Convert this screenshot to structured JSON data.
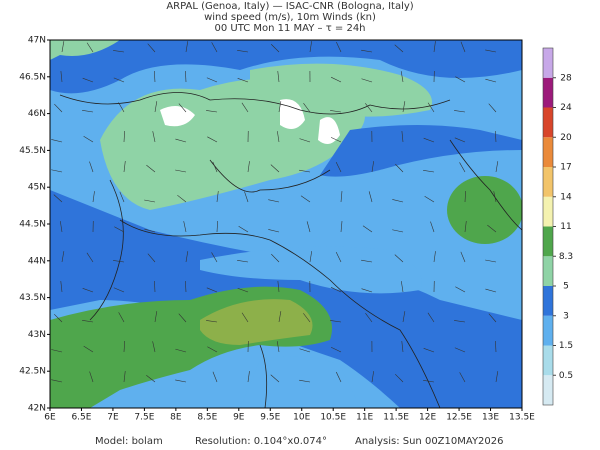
{
  "header": {
    "line1": "ARPAL (Genoa, Italy)  —  ISAC-CNR (Bologna, Italy)",
    "line2": "wind speed (m/s), 10m Winds (kn)",
    "line3": "00 UTC Mon 11 MAY  –  τ = 24h"
  },
  "map": {
    "lon_labels": [
      "6E",
      "6.5E",
      "7E",
      "7.5E",
      "8E",
      "8.5E",
      "9E",
      "9.5E",
      "10E",
      "10.5E",
      "11E",
      "11.5E",
      "12E",
      "12.5E",
      "13E",
      "13.5E"
    ],
    "lat_labels": [
      "42N",
      "42.5N",
      "43N",
      "43.5N",
      "44N",
      "44.5N",
      "45N",
      "45.5N",
      "46N",
      "46.5N",
      "47N"
    ]
  },
  "colorbar": {
    "levels": [
      0.5,
      1.5,
      3,
      5,
      8.3,
      11,
      14,
      17,
      20,
      24,
      28
    ],
    "colors": [
      "#d6eaf2",
      "#a9dcea",
      "#5fb0ee",
      "#2f74da",
      "#8fd3a6",
      "#4fa64c",
      "#f4f2b0",
      "#f2c46a",
      "#ea8a3a",
      "#d8452a",
      "#9c1a7a",
      "#c7a8e8"
    ]
  },
  "footer": {
    "model": "Model: bolam",
    "resolution": "Resolution: 0.104°x0.074°",
    "analysis": "Analysis: Sun 00Z10MAY2026"
  }
}
